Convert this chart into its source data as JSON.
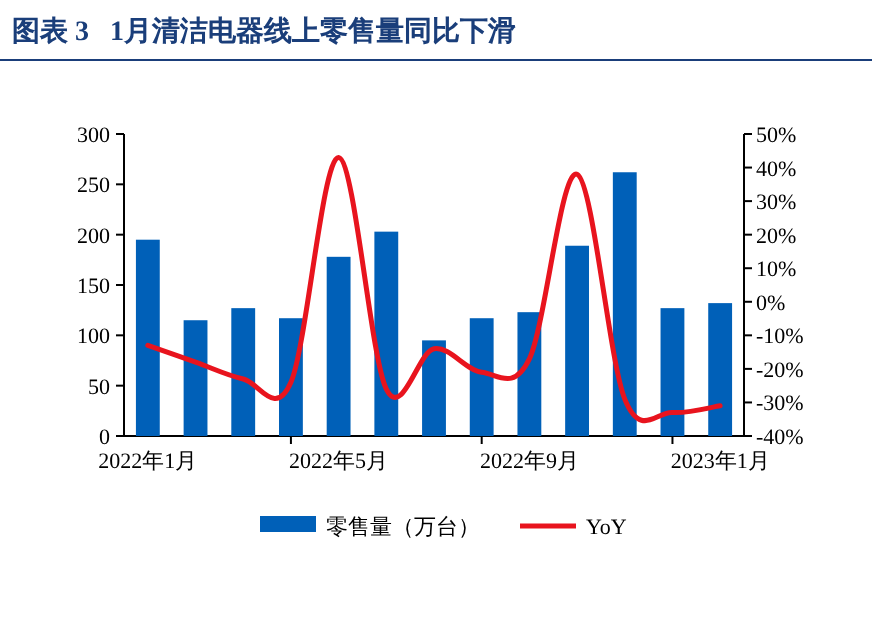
{
  "chart_data": {
    "type": "bar",
    "title": "图表 3   1月清洁电器线上零售量同比下滑",
    "categories": [
      "2022年1月",
      null,
      null,
      null,
      "2022年5月",
      null,
      null,
      null,
      "2022年9月",
      null,
      null,
      null,
      "2023年1月"
    ],
    "series": [
      {
        "name": "零售量（万台）",
        "color": "#0060b8",
        "values": [
          195,
          115,
          127,
          117,
          178,
          203,
          95,
          117,
          123,
          189,
          262,
          127,
          132
        ]
      },
      {
        "name": "YoY",
        "type": "line",
        "axis": "y2",
        "color": "#e8141e",
        "values": [
          -13,
          -18,
          -23,
          -24,
          43,
          -26,
          -14,
          -21,
          -17,
          38,
          -29,
          -33,
          -31
        ]
      }
    ],
    "ylim": [
      0,
      300
    ],
    "yticks": [
      0,
      50,
      100,
      150,
      200,
      250,
      300
    ],
    "y2lim": [
      -40,
      50
    ],
    "y2ticks": [
      {
        "value": -40,
        "label": "-40%"
      },
      {
        "value": -30,
        "label": "-30%"
      },
      {
        "value": -20,
        "label": "-20%"
      },
      {
        "value": -10,
        "label": "-10%"
      },
      {
        "value": 0,
        "label": "0%"
      },
      {
        "value": 10,
        "label": "10%"
      },
      {
        "value": 20,
        "label": "20%"
      },
      {
        "value": 30,
        "label": "30%"
      },
      {
        "value": 40,
        "label": "40%"
      },
      {
        "value": 50,
        "label": "50%"
      }
    ],
    "legend": "bottom"
  }
}
